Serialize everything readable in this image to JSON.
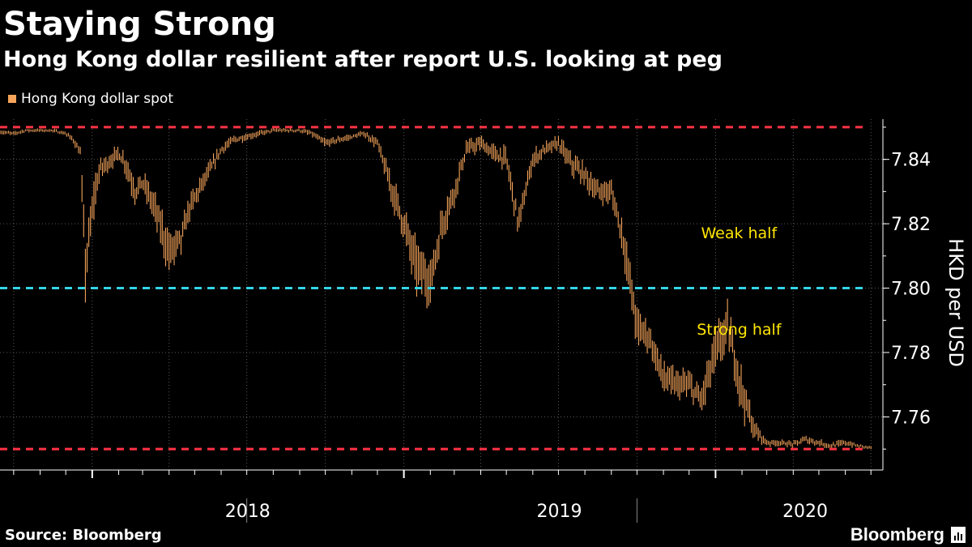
{
  "title": "Staying Strong",
  "subtitle": "Hong Kong dollar resilient after report U.S. looking at peg",
  "legend": {
    "label": "Hong Kong dollar spot",
    "color": "#f5a45a"
  },
  "source": "Source: Bloomberg",
  "brand": "Bloomberg",
  "chart_data": {
    "type": "line",
    "style": "daily high-low bars",
    "ylabel": "HKD per USD",
    "ylim": [
      7.7435,
      7.8525
    ],
    "yticks": [
      7.76,
      7.78,
      7.8,
      7.82,
      7.84
    ],
    "x_tick_labels": [
      "2018",
      "2019",
      "2020"
    ],
    "xlim": [
      "2017-09-15",
      "2020-07-15"
    ],
    "grid": true,
    "legend_position": "top-left",
    "series": [
      {
        "name": "Hong Kong dollar spot",
        "color": "#f5a45a",
        "x": [
          "2017-09-15",
          "2017-10-01",
          "2017-10-15",
          "2017-11-01",
          "2017-11-15",
          "2017-12-01",
          "2017-12-10",
          "2017-12-18",
          "2017-12-24",
          "2017-12-28",
          "2018-01-03",
          "2018-01-10",
          "2018-01-20",
          "2018-02-01",
          "2018-02-10",
          "2018-02-20",
          "2018-03-01",
          "2018-03-15",
          "2018-04-01",
          "2018-04-15",
          "2018-04-25",
          "2018-05-05",
          "2018-05-15",
          "2018-06-01",
          "2018-06-15",
          "2018-07-01",
          "2018-07-15",
          "2018-08-01",
          "2018-08-15",
          "2018-09-01",
          "2018-09-15",
          "2018-10-01",
          "2018-10-15",
          "2018-11-01",
          "2018-11-15",
          "2018-12-01",
          "2018-12-15",
          "2019-01-01",
          "2019-01-15",
          "2019-02-01",
          "2019-02-15",
          "2019-03-01",
          "2019-03-15",
          "2019-04-01",
          "2019-04-15",
          "2019-05-01",
          "2019-05-15",
          "2019-06-01",
          "2019-06-15",
          "2019-07-01",
          "2019-07-15",
          "2019-08-01",
          "2019-08-15",
          "2019-09-01",
          "2019-09-15",
          "2019-10-01",
          "2019-10-15",
          "2019-11-01",
          "2019-11-15",
          "2019-12-01",
          "2019-12-15",
          "2020-01-01",
          "2020-01-15",
          "2020-02-01",
          "2020-02-15",
          "2020-03-01",
          "2020-03-15",
          "2020-04-01",
          "2020-04-15",
          "2020-05-01",
          "2020-05-15",
          "2020-06-01",
          "2020-06-15",
          "2020-07-01"
        ],
        "values": [
          7.8485,
          7.848,
          7.849,
          7.849,
          7.849,
          7.848,
          7.846,
          7.842,
          7.806,
          7.815,
          7.828,
          7.837,
          7.839,
          7.842,
          7.838,
          7.83,
          7.833,
          7.825,
          7.811,
          7.815,
          7.825,
          7.83,
          7.835,
          7.843,
          7.846,
          7.847,
          7.848,
          7.849,
          7.849,
          7.849,
          7.848,
          7.845,
          7.846,
          7.847,
          7.848,
          7.845,
          7.833,
          7.82,
          7.807,
          7.802,
          7.82,
          7.83,
          7.843,
          7.845,
          7.842,
          7.84,
          7.82,
          7.84,
          7.843,
          7.845,
          7.839,
          7.835,
          7.83,
          7.83,
          7.815,
          7.788,
          7.785,
          7.772,
          7.77,
          7.77,
          7.765,
          7.78,
          7.788,
          7.768,
          7.756,
          7.752,
          7.752,
          7.7515,
          7.753,
          7.752,
          7.751,
          7.752,
          7.751,
          7.7505
        ],
        "range_half_width": [
          0.0006,
          0.0006,
          0.0005,
          0.0005,
          0.0005,
          0.0006,
          0.001,
          0.0015,
          0.008,
          0.006,
          0.005,
          0.003,
          0.0025,
          0.002,
          0.003,
          0.0035,
          0.003,
          0.004,
          0.006,
          0.0045,
          0.0035,
          0.003,
          0.0025,
          0.0015,
          0.0012,
          0.001,
          0.0008,
          0.0006,
          0.0006,
          0.0006,
          0.0008,
          0.0012,
          0.001,
          0.0008,
          0.0008,
          0.0015,
          0.004,
          0.005,
          0.007,
          0.006,
          0.005,
          0.004,
          0.0025,
          0.002,
          0.0025,
          0.003,
          0.004,
          0.0025,
          0.002,
          0.002,
          0.003,
          0.0035,
          0.003,
          0.003,
          0.005,
          0.006,
          0.004,
          0.005,
          0.004,
          0.0035,
          0.004,
          0.007,
          0.006,
          0.006,
          0.003,
          0.001,
          0.0008,
          0.0008,
          0.0012,
          0.001,
          0.0008,
          0.001,
          0.0006,
          0.0005
        ]
      }
    ],
    "reference_lines": [
      {
        "value": 7.85,
        "color": "#ff3344"
      },
      {
        "value": 7.8,
        "color": "#33d6e8"
      },
      {
        "value": 7.75,
        "color": "#ff3344"
      }
    ],
    "annotations": [
      {
        "text": "Weak half",
        "date": "2019-12-15",
        "value": 7.8155
      },
      {
        "text": "Strong half",
        "date": "2019-12-10",
        "value": 7.7855
      }
    ]
  }
}
